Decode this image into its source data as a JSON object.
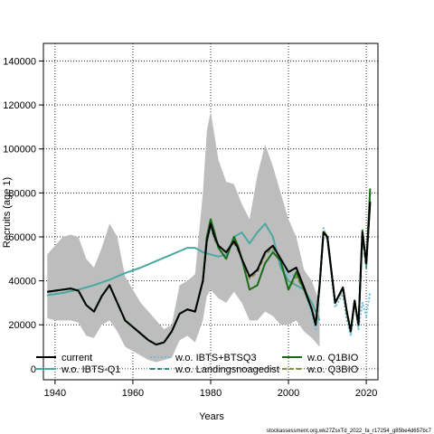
{
  "chart_data": {
    "type": "line",
    "xlabel": "Years",
    "ylabel": "Recruits (age 1)",
    "xlim": [
      1937,
      2023
    ],
    "ylim": [
      -5000,
      148000
    ],
    "x_ticks": [
      "1940",
      "1960",
      "1980",
      "2000",
      "2020"
    ],
    "y_ticks": [
      "0",
      "20000",
      "40000",
      "60000",
      "80000",
      "100000",
      "120000",
      "140000"
    ],
    "grid": true,
    "legend_position": "bottom",
    "footer": "stockassessment.org,wk27ZsxTd_2022_fa_r17254_g85be4d657bc7",
    "band": {
      "name": "confidence interval",
      "color": "#bdbdbd",
      "x": [
        1938,
        1940,
        1942,
        1944,
        1946,
        1948,
        1950,
        1952,
        1954,
        1956,
        1958,
        1960,
        1962,
        1964,
        1966,
        1968,
        1970,
        1972,
        1974,
        1976,
        1978,
        1979,
        1980,
        1982,
        1984,
        1986,
        1988,
        1990,
        1992,
        1994,
        1996,
        1998,
        2000,
        2002,
        2004,
        2006,
        2008
      ],
      "upper": [
        52000,
        56000,
        60000,
        61000,
        60000,
        50000,
        46000,
        55000,
        66000,
        60000,
        42000,
        36000,
        30000,
        26000,
        22000,
        18000,
        20000,
        38000,
        40000,
        43000,
        80000,
        108000,
        117000,
        95000,
        85000,
        84000,
        75000,
        68000,
        88000,
        102000,
        92000,
        80000,
        68000,
        60000,
        45000,
        40000,
        30000
      ],
      "lower": [
        23000,
        22000,
        22000,
        22000,
        21000,
        15000,
        14000,
        20000,
        22000,
        17000,
        10000,
        8000,
        6000,
        4000,
        3000,
        4000,
        5000,
        13000,
        15000,
        12000,
        22000,
        33000,
        36000,
        32000,
        30000,
        35000,
        30000,
        22000,
        22000,
        26000,
        24000,
        20000,
        20000,
        22000,
        17000,
        14000,
        10000
      ]
    },
    "series": [
      {
        "name": "current",
        "color": "#000000",
        "dash": "solid",
        "x": [
          1938,
          1940,
          1942,
          1944,
          1946,
          1948,
          1950,
          1952,
          1954,
          1956,
          1958,
          1960,
          1962,
          1964,
          1966,
          1968,
          1970,
          1972,
          1974,
          1976,
          1978,
          1979,
          1980,
          1981,
          1982,
          1984,
          1986,
          1987,
          1988,
          1990,
          1992,
          1994,
          1996,
          1998,
          2000,
          2002,
          2004,
          2006,
          2007,
          2008,
          2009,
          2010,
          2012,
          2014,
          2015,
          2016,
          2017,
          2018,
          2019,
          2020,
          2021
        ],
        "y": [
          35000,
          35500,
          36000,
          36500,
          35500,
          29000,
          26000,
          33000,
          38000,
          30000,
          22000,
          19000,
          16000,
          13000,
          11000,
          12000,
          17000,
          25000,
          27000,
          26000,
          40000,
          58000,
          66000,
          60000,
          56000,
          53000,
          58000,
          55000,
          50000,
          42000,
          45000,
          53000,
          56000,
          50000,
          44000,
          46000,
          37000,
          27000,
          20000,
          38000,
          62000,
          60000,
          30000,
          37000,
          26000,
          17000,
          31000,
          20000,
          62000,
          48000,
          76000
        ]
      },
      {
        "name": "w.o. IBTS-Q1",
        "color": "#4aa8a4",
        "dash": "solid",
        "x": [
          1938,
          1942,
          1946,
          1950,
          1954,
          1958,
          1962,
          1966,
          1970,
          1974,
          1976,
          1978,
          1980,
          1982,
          1984,
          1986,
          1988,
          1990,
          1992,
          1994,
          1996,
          1998,
          2000,
          2002,
          2004,
          2006,
          2008
        ],
        "y": [
          33500,
          34500,
          36000,
          38000,
          40500,
          43500,
          46000,
          49000,
          52000,
          55000,
          55000,
          53000,
          52000,
          51000,
          52000,
          60000,
          62000,
          57000,
          62000,
          66000,
          60000,
          46000,
          40000,
          38000,
          36000,
          30000,
          22000
        ]
      },
      {
        "name": "w.o. IBTS+BTSQ3",
        "color": "#6cc0e0",
        "dash": "dotted",
        "x": [
          1938,
          1940,
          1942,
          1944,
          1946,
          1948,
          1950,
          1952,
          1954,
          1956,
          1958,
          1960,
          1962,
          1964,
          1966,
          1968,
          1970,
          1972,
          1974,
          1976,
          1978,
          1979,
          1980,
          1981,
          1982,
          1984,
          1986,
          1987,
          1988,
          1990,
          1992,
          1994,
          1996,
          1998,
          2000,
          2002,
          2004,
          2006,
          2007,
          2008,
          2009,
          2010,
          2012,
          2014,
          2015,
          2016,
          2017,
          2018,
          2019,
          2020,
          2021
        ],
        "y": [
          35000,
          35500,
          36000,
          36500,
          35500,
          29000,
          26000,
          33000,
          38000,
          30000,
          22000,
          19000,
          16000,
          13000,
          11000,
          12000,
          17000,
          25000,
          27000,
          26000,
          40000,
          57000,
          64000,
          59000,
          55000,
          53000,
          57000,
          54000,
          50000,
          42000,
          45000,
          52000,
          54000,
          48000,
          42000,
          43000,
          36000,
          25000,
          18000,
          36000,
          64000,
          58000,
          28000,
          34000,
          22000,
          15000,
          30000,
          18000,
          30000,
          24000,
          35000
        ]
      },
      {
        "name": "w.o. Landingsnoagedist",
        "color": "#2e8b8b",
        "dash": "dashed",
        "x": [
          1938,
          1940,
          1942,
          1944,
          1946,
          1948,
          1950,
          1952,
          1954,
          1956,
          1958,
          1960,
          1962,
          1964,
          1966,
          1968,
          1970,
          1972,
          1974,
          1976,
          1978,
          1979,
          1980,
          1981,
          1982,
          1984,
          1986,
          1987,
          1988,
          1990,
          1992,
          1994,
          1996,
          1998,
          2000,
          2002,
          2004,
          2006,
          2007,
          2008,
          2009,
          2010,
          2012,
          2014,
          2015,
          2016,
          2017,
          2018,
          2019,
          2020,
          2021
        ],
        "y": [
          35000,
          35500,
          36000,
          36500,
          35500,
          29000,
          26000,
          33000,
          38000,
          30000,
          22000,
          19000,
          16000,
          13000,
          11000,
          12000,
          17000,
          25000,
          27000,
          26000,
          40000,
          58000,
          66000,
          60000,
          56000,
          53000,
          58000,
          55000,
          50000,
          42000,
          45000,
          53000,
          56000,
          50000,
          44000,
          46000,
          37000,
          27000,
          20000,
          38000,
          62000,
          60000,
          30000,
          37000,
          26000,
          17000,
          31000,
          20000,
          60000,
          46000,
          80000
        ]
      },
      {
        "name": "w.o. Q1BIO",
        "color": "#1a6b1a",
        "dash": "solid",
        "x": [
          1938,
          1940,
          1942,
          1944,
          1946,
          1948,
          1950,
          1952,
          1954,
          1956,
          1958,
          1960,
          1962,
          1964,
          1966,
          1968,
          1970,
          1972,
          1974,
          1976,
          1978,
          1979,
          1980,
          1981,
          1982,
          1984,
          1986,
          1987,
          1988,
          1990,
          1992,
          1994,
          1996,
          1998,
          2000,
          2002,
          2004,
          2006,
          2007,
          2008,
          2009,
          2010,
          2012,
          2014,
          2015,
          2016,
          2017,
          2018,
          2019,
          2020,
          2021
        ],
        "y": [
          35000,
          35500,
          36000,
          36500,
          35500,
          29000,
          26000,
          33000,
          38000,
          30000,
          22000,
          19000,
          16000,
          13000,
          11000,
          12000,
          17000,
          25000,
          27000,
          26000,
          40000,
          60000,
          68000,
          62000,
          55000,
          50000,
          60000,
          56000,
          50000,
          36000,
          38000,
          48000,
          53000,
          49000,
          36000,
          44000,
          36000,
          27000,
          20000,
          38000,
          62000,
          60000,
          30000,
          37000,
          26000,
          17000,
          31000,
          20000,
          63000,
          48000,
          82000
        ]
      },
      {
        "name": "w.o. Q3BIO",
        "color": "#8a8a3a",
        "dash": "dashed",
        "x": [
          1938,
          1940,
          1942,
          1944,
          1946,
          1948,
          1950,
          1952,
          1954,
          1956,
          1958,
          1960,
          1962,
          1964,
          1966,
          1968,
          1970,
          1972,
          1974,
          1976,
          1978,
          1979,
          1980,
          1981,
          1982,
          1984,
          1986,
          1987,
          1988,
          1990,
          1992,
          1994,
          1996,
          1998,
          2000,
          2002,
          2004,
          2006,
          2007,
          2008,
          2009,
          2010,
          2012,
          2014,
          2015,
          2016,
          2017,
          2018,
          2019,
          2020,
          2021
        ],
        "y": [
          35000,
          35500,
          36000,
          36500,
          35500,
          29000,
          26000,
          33000,
          38000,
          30000,
          22000,
          19000,
          16000,
          13000,
          11000,
          12000,
          17000,
          25000,
          27000,
          26000,
          40000,
          58000,
          65000,
          59000,
          55000,
          53000,
          57000,
          54000,
          50000,
          41000,
          44000,
          52000,
          55000,
          49000,
          36000,
          42000,
          36000,
          27000,
          20000,
          38000,
          63000,
          60000,
          30000,
          36000,
          25000,
          17000,
          30000,
          20000,
          61000,
          47000,
          75000
        ]
      }
    ]
  }
}
